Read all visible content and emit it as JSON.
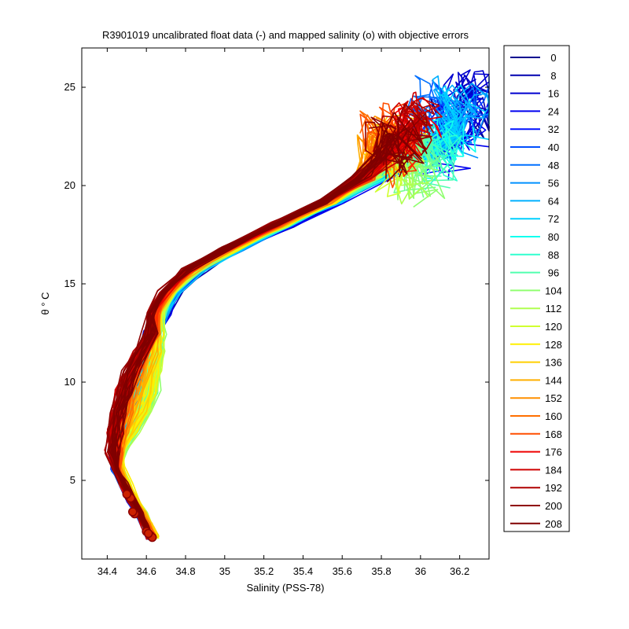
{
  "chart_data": {
    "type": "line",
    "title": "R3901019 uncalibrated float data (-) and mapped salinity (o) with objective errors",
    "xlabel": "Salinity (PSS-78)",
    "ylabel": "θ ° C",
    "xlim": [
      34.27,
      36.35
    ],
    "ylim": [
      1.0,
      27.0
    ],
    "x_ticks": [
      34.4,
      34.6,
      34.8,
      35,
      35.2,
      35.4,
      35.6,
      35.8,
      36,
      36.2
    ],
    "x_tick_labels": [
      "34.4",
      "34.6",
      "34.8",
      "35",
      "35.2",
      "35.4",
      "35.6",
      "35.8",
      "36",
      "36.2"
    ],
    "y_ticks": [
      5,
      10,
      15,
      20,
      25
    ],
    "y_tick_labels": [
      "5",
      "10",
      "15",
      "20",
      "25"
    ],
    "grid": false,
    "legend_position": "right-outside",
    "legend": [
      "0",
      "8",
      "16",
      "24",
      "32",
      "40",
      "48",
      "56",
      "64",
      "72",
      "80",
      "88",
      "96",
      "104",
      "112",
      "120",
      "128",
      "136",
      "144",
      "152",
      "160",
      "168",
      "176",
      "184",
      "192",
      "200",
      "208"
    ],
    "legend_colors": [
      "#00008f",
      "#0000af",
      "#0000cf",
      "#0000ef",
      "#0010ff",
      "#0030ff",
      "#0050ff",
      "#0070ff",
      "#0090ff",
      "#00b0ff",
      "#00d0ff",
      "#10ffef",
      "#30ffcf",
      "#50ffaf",
      "#70ff8f",
      "#90ff70",
      "#b0ff50",
      "#d0ff30",
      "#ffef00",
      "#ffcf00",
      "#ffaf00",
      "#ff8f00",
      "#ff6f00",
      "#ff4f00",
      "#ff2f00",
      "#ef0000",
      "#cf0000",
      "#af0000",
      "#8f0000",
      "#800000"
    ],
    "base_profile": {
      "salinity": [
        34.63,
        34.6,
        34.57,
        34.53,
        34.49,
        34.45,
        34.44,
        34.46,
        34.49,
        34.52,
        34.55,
        34.59,
        34.63,
        34.67,
        34.73,
        34.85,
        35.05,
        35.3,
        35.55,
        35.75,
        35.88,
        35.95
      ],
      "theta": [
        2.1,
        2.7,
        3.3,
        4.0,
        4.8,
        5.6,
        6.5,
        7.5,
        8.5,
        9.5,
        10.5,
        11.5,
        12.5,
        13.5,
        14.6,
        15.7,
        16.8,
        18.0,
        19.2,
        20.4,
        21.5,
        22.5
      ]
    },
    "profile_groups": [
      {
        "start": 0,
        "ds_deep": -0.01,
        "ds_inter": 0.02,
        "ds_upper": 0.04,
        "ds_surface": 0.2,
        "theta_top": 24.5
      },
      {
        "start": 8,
        "ds_deep": -0.01,
        "ds_inter": 0.02,
        "ds_upper": 0.03,
        "ds_surface": 0.25,
        "theta_top": 25.5
      },
      {
        "start": 16,
        "ds_deep": -0.01,
        "ds_inter": 0.01,
        "ds_upper": 0.03,
        "ds_surface": 0.15,
        "theta_top": 24.0
      },
      {
        "start": 24,
        "ds_deep": -0.01,
        "ds_inter": 0.01,
        "ds_upper": 0.02,
        "ds_surface": 0.1,
        "theta_top": 22.5
      },
      {
        "start": 32,
        "ds_deep": -0.01,
        "ds_inter": 0.01,
        "ds_upper": 0.02,
        "ds_surface": 0.05,
        "theta_top": 23.5
      },
      {
        "start": 40,
        "ds_deep": -0.01,
        "ds_inter": 0.01,
        "ds_upper": 0.02,
        "ds_surface": 0.15,
        "theta_top": 25.0
      },
      {
        "start": 48,
        "ds_deep": -0.01,
        "ds_inter": 0.01,
        "ds_upper": 0.02,
        "ds_surface": 0.1,
        "theta_top": 24.5
      },
      {
        "start": 56,
        "ds_deep": -0.01,
        "ds_inter": 0.01,
        "ds_upper": 0.02,
        "ds_surface": 0.2,
        "theta_top": 24.0
      },
      {
        "start": 64,
        "ds_deep": -0.01,
        "ds_inter": 0.03,
        "ds_upper": 0.02,
        "ds_surface": 0.22,
        "theta_top": 25.0
      },
      {
        "start": 72,
        "ds_deep": 0.0,
        "ds_inter": 0.05,
        "ds_upper": 0.02,
        "ds_surface": 0.18,
        "theta_top": 23.5
      },
      {
        "start": 80,
        "ds_deep": 0.0,
        "ds_inter": 0.08,
        "ds_upper": 0.01,
        "ds_surface": 0.12,
        "theta_top": 22.5
      },
      {
        "start": 88,
        "ds_deep": 0.0,
        "ds_inter": 0.1,
        "ds_upper": 0.01,
        "ds_surface": 0.05,
        "theta_top": 22.0
      },
      {
        "start": 96,
        "ds_deep": 0.01,
        "ds_inter": 0.1,
        "ds_upper": 0.01,
        "ds_surface": 0.02,
        "theta_top": 21.5
      },
      {
        "start": 104,
        "ds_deep": 0.01,
        "ds_inter": 0.12,
        "ds_upper": 0.0,
        "ds_surface": 0.0,
        "theta_top": 21.0
      },
      {
        "start": 112,
        "ds_deep": 0.02,
        "ds_inter": 0.12,
        "ds_upper": 0.0,
        "ds_surface": -0.05,
        "theta_top": 21.5
      },
      {
        "start": 120,
        "ds_deep": 0.02,
        "ds_inter": 0.1,
        "ds_upper": 0.0,
        "ds_surface": -0.1,
        "theta_top": 22.0
      },
      {
        "start": 128,
        "ds_deep": 0.02,
        "ds_inter": 0.08,
        "ds_upper": -0.01,
        "ds_surface": -0.15,
        "theta_top": 22.5
      },
      {
        "start": 136,
        "ds_deep": 0.01,
        "ds_inter": 0.05,
        "ds_upper": -0.01,
        "ds_surface": -0.18,
        "theta_top": 23.0
      },
      {
        "start": 144,
        "ds_deep": 0.01,
        "ds_inter": 0.02,
        "ds_upper": -0.02,
        "ds_surface": -0.2,
        "theta_top": 22.5
      },
      {
        "start": 152,
        "ds_deep": 0.0,
        "ds_inter": 0.0,
        "ds_upper": -0.02,
        "ds_surface": -0.15,
        "theta_top": 23.0
      },
      {
        "start": 160,
        "ds_deep": 0.0,
        "ds_inter": -0.02,
        "ds_upper": -0.03,
        "ds_surface": -0.1,
        "theta_top": 23.5
      },
      {
        "start": 168,
        "ds_deep": -0.01,
        "ds_inter": -0.03,
        "ds_upper": -0.03,
        "ds_surface": -0.05,
        "theta_top": 22.5
      },
      {
        "start": 176,
        "ds_deep": -0.01,
        "ds_inter": -0.04,
        "ds_upper": -0.04,
        "ds_surface": 0.0,
        "theta_top": 23.5
      },
      {
        "start": 184,
        "ds_deep": -0.01,
        "ds_inter": -0.05,
        "ds_upper": -0.04,
        "ds_surface": 0.05,
        "theta_top": 24.0
      },
      {
        "start": 192,
        "ds_deep": -0.01,
        "ds_inter": -0.04,
        "ds_upper": -0.05,
        "ds_surface": 0.0,
        "theta_top": 23.5
      },
      {
        "start": 200,
        "ds_deep": 0.0,
        "ds_inter": -0.03,
        "ds_upper": -0.05,
        "ds_surface": -0.05,
        "theta_top": 23.0
      },
      {
        "start": 208,
        "ds_deep": 0.0,
        "ds_inter": -0.02,
        "ds_upper": -0.04,
        "ds_surface": -0.08,
        "theta_top": 22.5
      }
    ],
    "mapped_salinity_points": [
      {
        "salinity": 34.51,
        "theta": 4.2
      },
      {
        "salinity": 34.52,
        "theta": 4.1
      },
      {
        "salinity": 34.5,
        "theta": 4.3
      },
      {
        "salinity": 34.54,
        "theta": 3.3
      },
      {
        "salinity": 34.53,
        "theta": 3.4
      },
      {
        "salinity": 34.6,
        "theta": 2.4
      },
      {
        "salinity": 34.62,
        "theta": 2.2
      },
      {
        "salinity": 34.63,
        "theta": 2.1
      },
      {
        "salinity": 34.61,
        "theta": 2.3
      }
    ]
  }
}
